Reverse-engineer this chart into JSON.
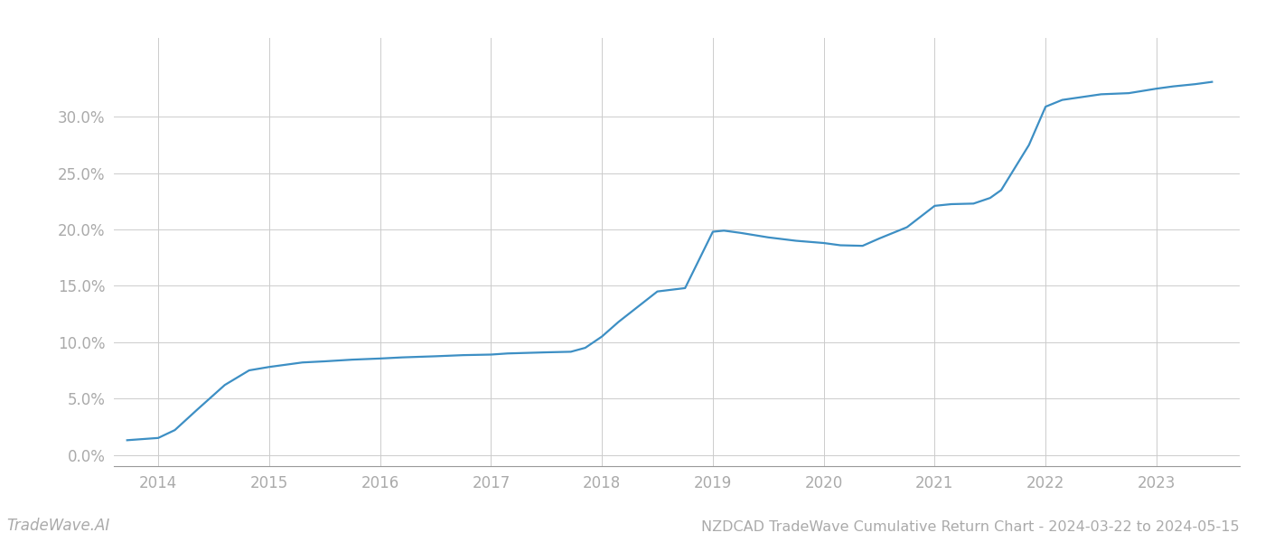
{
  "title": "NZDCAD TradeWave Cumulative Return Chart - 2024-03-22 to 2024-05-15",
  "watermark": "TradeWave.AI",
  "line_color": "#3d8fc4",
  "background_color": "#ffffff",
  "grid_color": "#cccccc",
  "x_values": [
    2013.72,
    2014.0,
    2014.15,
    2014.35,
    2014.6,
    2014.82,
    2015.0,
    2015.15,
    2015.3,
    2015.5,
    2015.75,
    2016.0,
    2016.2,
    2016.5,
    2016.75,
    2017.0,
    2017.15,
    2017.5,
    2017.72,
    2017.85,
    2018.0,
    2018.15,
    2018.5,
    2018.75,
    2019.0,
    2019.1,
    2019.25,
    2019.5,
    2019.75,
    2020.0,
    2020.15,
    2020.35,
    2020.5,
    2020.75,
    2021.0,
    2021.15,
    2021.35,
    2021.5,
    2021.6,
    2021.85,
    2022.0,
    2022.15,
    2022.5,
    2022.75,
    2023.0,
    2023.15,
    2023.35,
    2023.5
  ],
  "y_values": [
    1.3,
    1.5,
    2.2,
    4.0,
    6.2,
    7.5,
    7.8,
    8.0,
    8.2,
    8.3,
    8.45,
    8.55,
    8.65,
    8.75,
    8.85,
    8.9,
    9.0,
    9.1,
    9.15,
    9.5,
    10.5,
    11.8,
    14.5,
    14.8,
    19.8,
    19.9,
    19.7,
    19.3,
    19.0,
    18.8,
    18.6,
    18.55,
    19.2,
    20.2,
    22.1,
    22.25,
    22.3,
    22.8,
    23.5,
    27.5,
    30.9,
    31.5,
    32.0,
    32.1,
    32.5,
    32.7,
    32.9,
    33.1
  ],
  "xlim": [
    2013.6,
    2023.75
  ],
  "ylim": [
    -1.0,
    37.0
  ],
  "yticks": [
    0.0,
    5.0,
    10.0,
    15.0,
    20.0,
    25.0,
    30.0
  ],
  "xticks": [
    2014,
    2015,
    2016,
    2017,
    2018,
    2019,
    2020,
    2021,
    2022,
    2023
  ],
  "line_width": 1.6,
  "title_fontsize": 11.5,
  "tick_fontsize": 12,
  "watermark_fontsize": 12
}
